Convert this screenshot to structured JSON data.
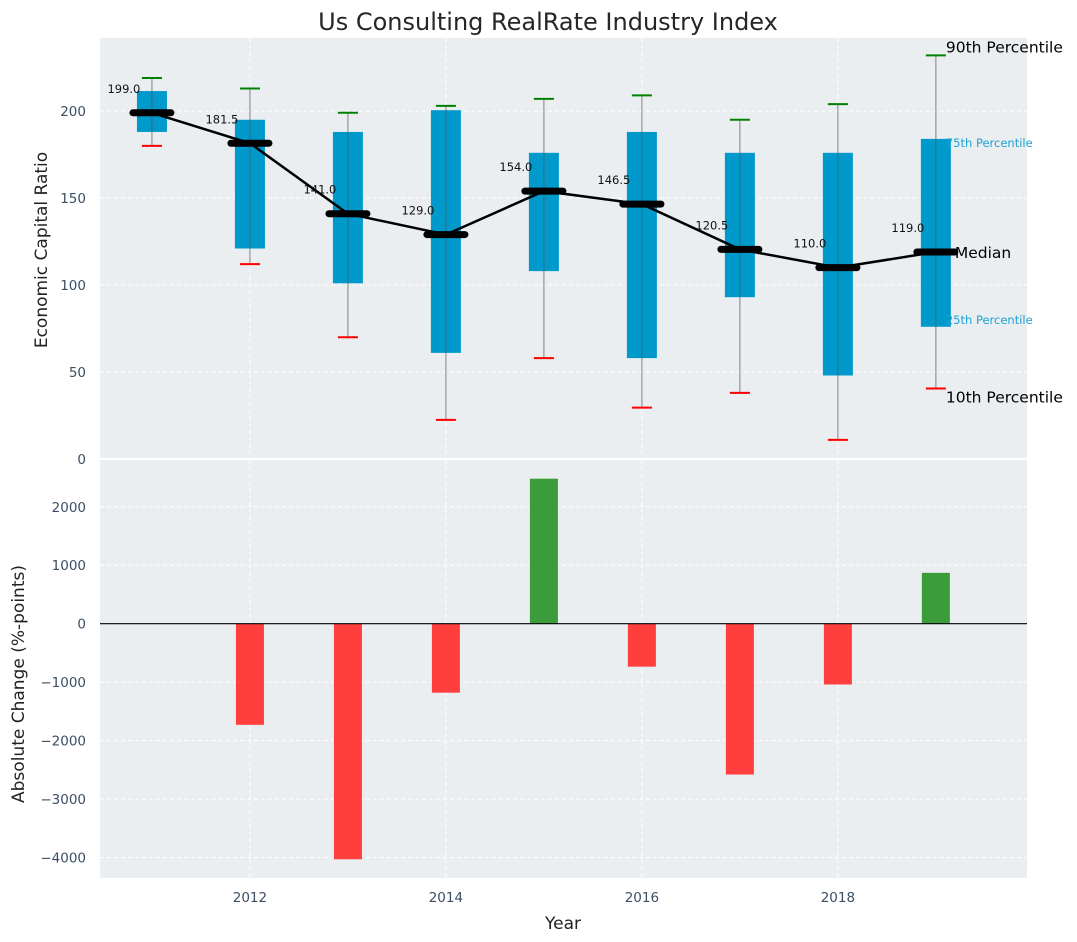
{
  "chart_data": [
    {
      "type": "box",
      "title": "Us Consulting RealRate Industry Index",
      "xlabel": "",
      "ylabel": "Economic Capital Ratio",
      "ylim": [
        0,
        242
      ],
      "yticks": [
        0,
        50,
        100,
        150,
        200
      ],
      "grid": true,
      "x": [
        2011,
        2012,
        2013,
        2014,
        2015,
        2016,
        2017,
        2018,
        2019
      ],
      "series": [
        {
          "name": "90th Percentile",
          "values": [
            219,
            213,
            199,
            203,
            207,
            209,
            195,
            204,
            232
          ]
        },
        {
          "name": "75th Percentile",
          "values": [
            211.5,
            195,
            188,
            200.5,
            176,
            188,
            176,
            176,
            184
          ]
        },
        {
          "name": "Median",
          "values": [
            199.0,
            181.5,
            141.0,
            129.0,
            154.0,
            146.5,
            120.5,
            110.0,
            119.0
          ]
        },
        {
          "name": "25th Percentile",
          "values": [
            188,
            121,
            101,
            61,
            108,
            58,
            93,
            48,
            76
          ]
        },
        {
          "name": "10th Percentile",
          "values": [
            180,
            112,
            70,
            22.5,
            58,
            29.5,
            38,
            11,
            40.5
          ]
        }
      ],
      "median_labels": [
        "199.0",
        "181.5",
        "141.0",
        "129.0",
        "154.0",
        "146.5",
        "120.5",
        "110.0",
        "119.0"
      ],
      "annotations": [
        "90th Percentile",
        "75th Percentile",
        "Median",
        "25th Percentile",
        "10th Percentile"
      ],
      "colors": {
        "box": "#0099cc",
        "whisker_high": "#008000",
        "whisker_low": "#ff0000",
        "median": "#000000",
        "annotation_blue": "#1ba3d6",
        "background": "#eaeef0"
      }
    },
    {
      "type": "bar",
      "xlabel": "Year",
      "ylabel": "Absolute Change (%-points)",
      "ylim": [
        -4350,
        2800
      ],
      "yticks": [
        -4000,
        -3000,
        -2000,
        -1000,
        0,
        1000,
        2000
      ],
      "ytick_labels": [
        "−4000",
        "−3000",
        "−2000",
        "−1000",
        "0",
        "1000",
        "2000"
      ],
      "xlim": [
        2010.47,
        2019.93
      ],
      "xticks": [
        2012,
        2014,
        2016,
        2018
      ],
      "grid": true,
      "x": [
        2012,
        2013,
        2014,
        2015,
        2016,
        2017,
        2018,
        2019
      ],
      "values": [
        -1730,
        -4030,
        -1180,
        2480,
        -735,
        -2580,
        -1040,
        870
      ],
      "colors": {
        "positive": "#3a9c3a",
        "negative": "#ff3e3e"
      }
    }
  ]
}
